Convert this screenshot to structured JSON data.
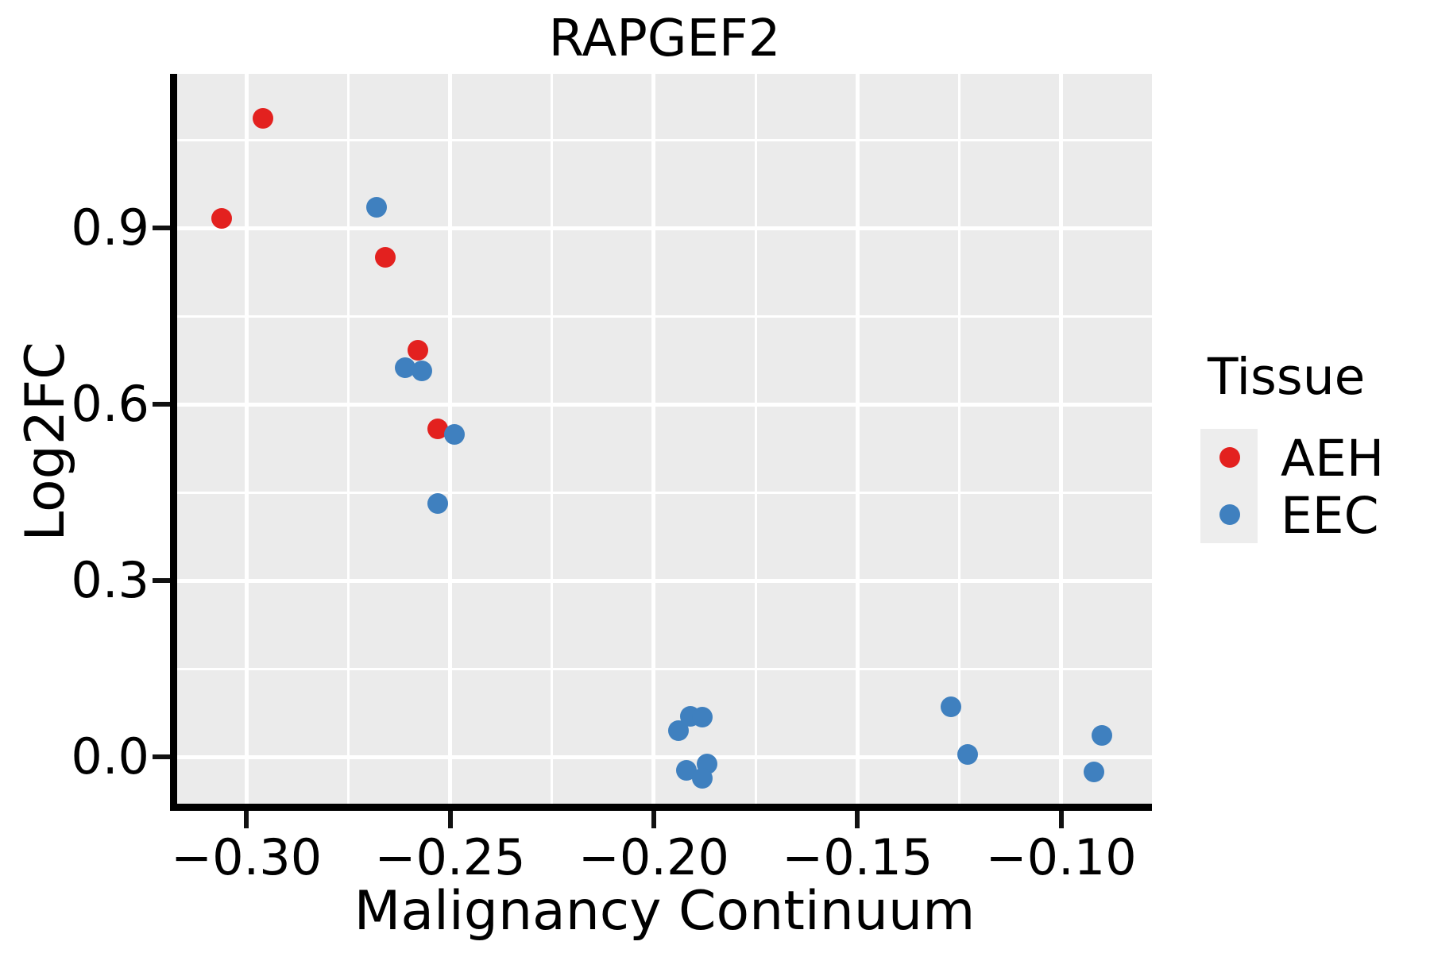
{
  "chart_data": {
    "type": "scatter",
    "title": "RAPGEF2",
    "xlabel": "Malignancy Continuum",
    "ylabel": "Log2FC",
    "xlim": [
      -0.317,
      -0.0777
    ],
    "ylim": [
      -0.0797,
      1.1622
    ],
    "grid": true,
    "panel_color": "#ebebeb",
    "x_major_ticks": [
      -0.3,
      -0.25,
      -0.2,
      -0.15,
      -0.1
    ],
    "x_tick_labels": [
      "−0.30",
      "−0.25",
      "−0.20",
      "−0.15",
      "−0.10"
    ],
    "x_minor_ticks": [
      -0.275,
      -0.225,
      -0.175,
      -0.125
    ],
    "y_major_ticks": [
      0.0,
      0.3,
      0.6,
      0.9
    ],
    "y_tick_labels": [
      "0.0",
      "0.3",
      "0.6",
      "0.9"
    ],
    "y_minor_ticks": [
      0.15,
      0.45,
      0.75,
      1.05
    ],
    "legend_position": "right",
    "series": [
      {
        "name": "AEH",
        "color": "#e3211f",
        "points": [
          [
            -0.296,
            1.086
          ],
          [
            -0.306,
            0.916
          ],
          [
            -0.266,
            0.85
          ],
          [
            -0.258,
            0.692
          ],
          [
            -0.253,
            0.558
          ]
        ]
      },
      {
        "name": "EEC",
        "color": "#3f80bf",
        "points": [
          [
            -0.268,
            0.935
          ],
          [
            -0.261,
            0.662
          ],
          [
            -0.257,
            0.657
          ],
          [
            -0.249,
            0.549
          ],
          [
            -0.253,
            0.431
          ],
          [
            -0.191,
            0.069
          ],
          [
            -0.188,
            0.068
          ],
          [
            -0.194,
            0.045
          ],
          [
            -0.187,
            -0.012
          ],
          [
            -0.192,
            -0.023
          ],
          [
            -0.188,
            -0.036
          ],
          [
            -0.127,
            0.085
          ],
          [
            -0.123,
            0.004
          ],
          [
            -0.09,
            0.036
          ],
          [
            -0.092,
            -0.026
          ]
        ]
      }
    ]
  },
  "legend": {
    "title": "Tissue",
    "entries": [
      {
        "label": "AEH",
        "color": "#e3211f"
      },
      {
        "label": "EEC",
        "color": "#3f80bf"
      }
    ]
  }
}
